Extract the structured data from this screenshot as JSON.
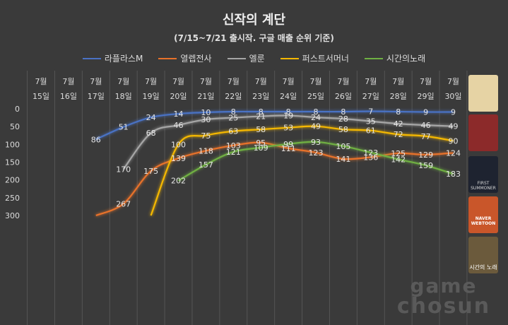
{
  "chart_data": {
    "type": "line",
    "title": "신작의 계단",
    "subtitle": "(7/15~7/21 출시작. 구글 매출 순위 기준)",
    "categories_top": [
      "7월",
      "7월",
      "7월",
      "7월",
      "7월",
      "7월",
      "7월",
      "7월",
      "7월",
      "7월",
      "7월",
      "7월",
      "7월",
      "7월",
      "7월",
      "7월"
    ],
    "categories": [
      "15일",
      "16일",
      "17일",
      "18일",
      "19일",
      "20일",
      "21일",
      "22일",
      "23일",
      "24일",
      "25일",
      "26일",
      "27일",
      "28일",
      "29일",
      "30일"
    ],
    "ylim": [
      0,
      300
    ],
    "y_inverted": true,
    "y_ticks": [
      "0",
      "50",
      "100",
      "150",
      "200",
      "250",
      "300"
    ],
    "grid": "vertical",
    "legend_position": "top",
    "series": [
      {
        "name": "라플라스M",
        "color": "#4a72c4",
        "values": [
          null,
          null,
          86,
          51,
          24,
          14,
          10,
          8,
          8,
          8,
          8,
          8,
          7,
          8,
          9,
          9
        ],
        "labels": [
          "",
          "",
          "86",
          "51",
          "24",
          "14",
          "10",
          "8",
          "8",
          "8",
          "8",
          "8",
          "7",
          "8",
          "9",
          "9"
        ]
      },
      {
        "name": "열렙전사",
        "color": "#e8722a",
        "values": [
          null,
          null,
          300,
          267,
          175,
          139,
          118,
          103,
          95,
          111,
          123,
          141,
          136,
          125,
          129,
          124
        ],
        "labels": [
          "",
          "",
          "",
          "267",
          "175",
          "139",
          "118",
          "103",
          "95",
          "111",
          "123",
          "141",
          "136",
          "125",
          "129",
          "124"
        ]
      },
      {
        "name": "엘룬",
        "color": "#a6a6a6",
        "values": [
          null,
          null,
          null,
          170,
          68,
          46,
          30,
          25,
          21,
          19,
          24,
          28,
          35,
          42,
          46,
          49
        ],
        "labels": [
          "",
          "",
          "",
          "170",
          "68",
          "46",
          "30",
          "25",
          "21",
          "19",
          "24",
          "28",
          "35",
          "42",
          "46",
          "49"
        ]
      },
      {
        "name": "퍼스트서머너",
        "color": "#f5b800",
        "values": [
          null,
          null,
          null,
          null,
          300,
          100,
          75,
          63,
          58,
          53,
          49,
          58,
          61,
          72,
          77,
          90
        ],
        "labels": [
          "",
          "",
          "",
          "",
          "",
          "100",
          "75",
          "63",
          "58",
          "53",
          "49",
          "58",
          "61",
          "72",
          "77",
          "90"
        ]
      },
      {
        "name": "시간의노래",
        "color": "#6fb043",
        "values": [
          null,
          null,
          null,
          null,
          null,
          202,
          157,
          121,
          109,
          99,
          93,
          105,
          123,
          142,
          159,
          183
        ],
        "labels": [
          "",
          "",
          "",
          "",
          "",
          "202",
          "157",
          "121",
          "109",
          "99",
          "93",
          "105",
          "123",
          "142",
          "159",
          "183"
        ]
      }
    ]
  },
  "thumbnails": [
    {
      "game": "라플라스M",
      "color": "#e6d3a4"
    },
    {
      "game": "열렙전사",
      "color": "#8c2a2a"
    },
    {
      "game": "엘룬",
      "color": "#1e2330"
    },
    {
      "game": "퍼스트서머너",
      "color": "#c9562a"
    },
    {
      "game": "시간의노래",
      "color": "#6b5a3c"
    }
  ],
  "thumb_captions": [
    "FIRST SUMMONER",
    "NAVER WEBTOON",
    "시간의 노래"
  ],
  "watermark": [
    "game",
    "chosun"
  ]
}
